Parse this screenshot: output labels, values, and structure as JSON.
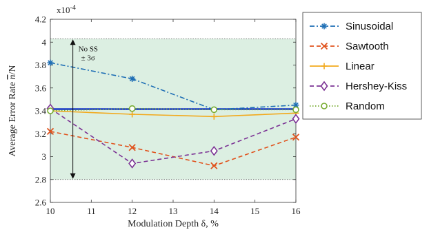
{
  "chart_data": {
    "type": "line",
    "title": "",
    "xlabel": "Modulation Depth δ, %",
    "ylabel_prefix": "Average Error Rate ",
    "ylabel_symbol": "n",
    "ylabel_suffix": "/N",
    "y_multiplier": "x10",
    "y_multiplier_exp": "-4",
    "x": [
      10,
      12,
      14,
      16
    ],
    "xlim": [
      10,
      16
    ],
    "ylim": [
      2.6,
      4.2
    ],
    "xticks": [
      "10",
      "11",
      "12",
      "13",
      "14",
      "15",
      "16"
    ],
    "yticks": [
      "2.6",
      "2.8",
      "3",
      "3.2",
      "3.4",
      "3.6",
      "3.8",
      "4",
      "4.2"
    ],
    "grid": false,
    "legend_position": "outside-right",
    "series": [
      {
        "name": "Sinusoidal",
        "values": [
          3.82,
          3.68,
          3.41,
          3.45
        ],
        "color": "#1f6fb5",
        "dash": "dashdot",
        "marker": "star"
      },
      {
        "name": "Sawtooth",
        "values": [
          3.22,
          3.08,
          2.92,
          3.17
        ],
        "color": "#e0521c",
        "dash": "dashed",
        "marker": "x"
      },
      {
        "name": "Linear",
        "values": [
          3.4,
          3.37,
          3.35,
          3.38
        ],
        "color": "#f2a91c",
        "dash": "solid",
        "marker": "plus"
      },
      {
        "name": "Hershey-Kiss",
        "values": [
          3.42,
          2.94,
          3.05,
          3.33
        ],
        "color": "#7b3294",
        "dash": "dashed",
        "marker": "diamond"
      },
      {
        "name": "Random",
        "values": [
          3.4,
          3.42,
          3.41,
          3.41
        ],
        "color": "#77ac30",
        "dash": "dotted",
        "marker": "circle"
      }
    ],
    "reference": {
      "no_ss_mean": 3.415,
      "band_low": 2.8,
      "band_high": 4.03,
      "mean_color": "#1434c8",
      "band_color": "#dcefe2",
      "annotation_line1": "No SS",
      "annotation_line2": "± 3σ",
      "annotation_x": 10.55
    }
  }
}
